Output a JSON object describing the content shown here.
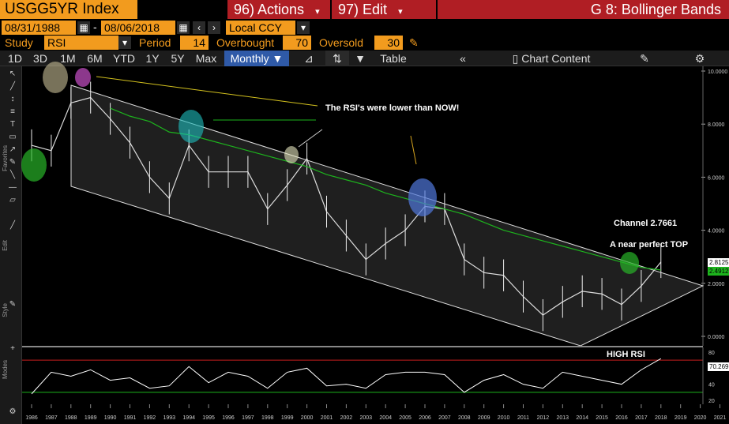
{
  "header": {
    "ticker": "USGG5YR Index",
    "actions": {
      "num": "96)",
      "label": "Actions"
    },
    "edit": {
      "num": "97)",
      "label": "Edit"
    },
    "study_title": "G 8: Bollinger Bands"
  },
  "dates": {
    "start": "08/31/1988",
    "sep": "-",
    "end": "08/06/2018",
    "currency": "Local CCY"
  },
  "study": {
    "label": "Study",
    "value": "RSI",
    "period_label": "Period",
    "period": "14",
    "overbought_label": "Overbought",
    "overbought": "70",
    "oversold_label": "Oversold",
    "oversold": "30"
  },
  "tabs": [
    "1D",
    "3D",
    "1M",
    "6M",
    "YTD",
    "1Y",
    "5Y",
    "Max"
  ],
  "frequency": "Monthly",
  "table_label": "Table",
  "chart_content_label": "Chart Content",
  "chart_tools": [
    "Track",
    "Annotate",
    "News",
    "Zoom",
    "Reset"
  ],
  "sidebar_labels": {
    "favorites": "Favorites",
    "edit": "Edit",
    "style": "Style",
    "modes": "Modes"
  },
  "annotations": {
    "rsi_note": "The RSI's were lower than NOW!",
    "channel": "Channel 2.7661",
    "top": "A near perfect TOP",
    "high_rsi": "HIGH RSI"
  },
  "price_labels": {
    "last": "2.8125",
    "ma": "2.4912",
    "rsi_last": "70.2696"
  },
  "colors": {
    "accent": "#f29b1e",
    "button_red": "#b01e24",
    "active_tab": "#2f5aa8",
    "ma_line": "#1db31d",
    "overbought_line": "#c81e1e",
    "oversold_line": "#1db31d"
  },
  "chart_data": [
    {
      "type": "line",
      "x": [
        "1986",
        "1987",
        "1988",
        "1989",
        "1990",
        "1991",
        "1992",
        "1993",
        "1994",
        "1995",
        "1996",
        "1997",
        "1998",
        "1999",
        "2000",
        "2001",
        "2002",
        "2003",
        "2004",
        "2005",
        "2006",
        "2007",
        "2008",
        "2009",
        "2010",
        "2011",
        "2012",
        "2013",
        "2014",
        "2015",
        "2016",
        "2017",
        "2018"
      ],
      "series": [
        {
          "values": [
            7.2,
            7.0,
            8.8,
            9.0,
            8.2,
            7.3,
            6.0,
            5.2,
            7.2,
            6.2,
            6.2,
            6.2,
            4.8,
            5.7,
            6.7,
            4.7,
            3.8,
            2.9,
            3.5,
            4.0,
            4.9,
            4.8,
            2.9,
            2.4,
            2.3,
            1.5,
            0.8,
            1.3,
            1.7,
            1.6,
            1.2,
            1.9,
            2.8
          ]
        },
        {
          "values": [
            null,
            null,
            null,
            null,
            8.6,
            8.3,
            8.1,
            7.7,
            7.6,
            7.4,
            7.2,
            7.0,
            6.8,
            6.6,
            6.4,
            6.1,
            5.9,
            5.7,
            5.4,
            5.2,
            5.0,
            4.8,
            4.6,
            4.3,
            4.0,
            3.8,
            3.6,
            3.4,
            3.2,
            3.0,
            2.8,
            2.6,
            2.5
          ]
        }
      ],
      "ylim": [
        0,
        10
      ],
      "yticks": [
        "0.0000",
        "2.0000",
        "4.0000",
        "6.0000",
        "8.0000",
        "10.0000"
      ],
      "xticks": [
        "1986",
        "1987",
        "1988",
        "1989",
        "1990",
        "1991",
        "1992",
        "1993",
        "1994",
        "1995",
        "1996",
        "1997",
        "1998",
        "1999",
        "2000",
        "2001",
        "2002",
        "2003",
        "2004",
        "2005",
        "2006",
        "2007",
        "2008",
        "2009",
        "2010",
        "2011",
        "2012",
        "2013",
        "2014",
        "2015",
        "2016",
        "2017",
        "2018",
        "2019",
        "2020",
        "2021"
      ]
    },
    {
      "type": "line",
      "x": [
        "1986",
        "1987",
        "1988",
        "1989",
        "1990",
        "1991",
        "1992",
        "1993",
        "1994",
        "1995",
        "1996",
        "1997",
        "1998",
        "1999",
        "2000",
        "2001",
        "2002",
        "2003",
        "2004",
        "2005",
        "2006",
        "2007",
        "2008",
        "2009",
        "2010",
        "2011",
        "2012",
        "2013",
        "2014",
        "2015",
        "2016",
        "2017",
        "2018"
      ],
      "series": [
        {
          "values": [
            28,
            55,
            50,
            58,
            45,
            48,
            35,
            38,
            62,
            42,
            55,
            50,
            35,
            55,
            60,
            38,
            40,
            35,
            52,
            55,
            55,
            52,
            30,
            45,
            52,
            40,
            35,
            55,
            50,
            45,
            40,
            58,
            72
          ]
        }
      ],
      "ylim": [
        20,
        80
      ],
      "yticks": [
        "20",
        "40",
        "60",
        "80"
      ],
      "overbought": 70,
      "oversold": 30
    }
  ]
}
